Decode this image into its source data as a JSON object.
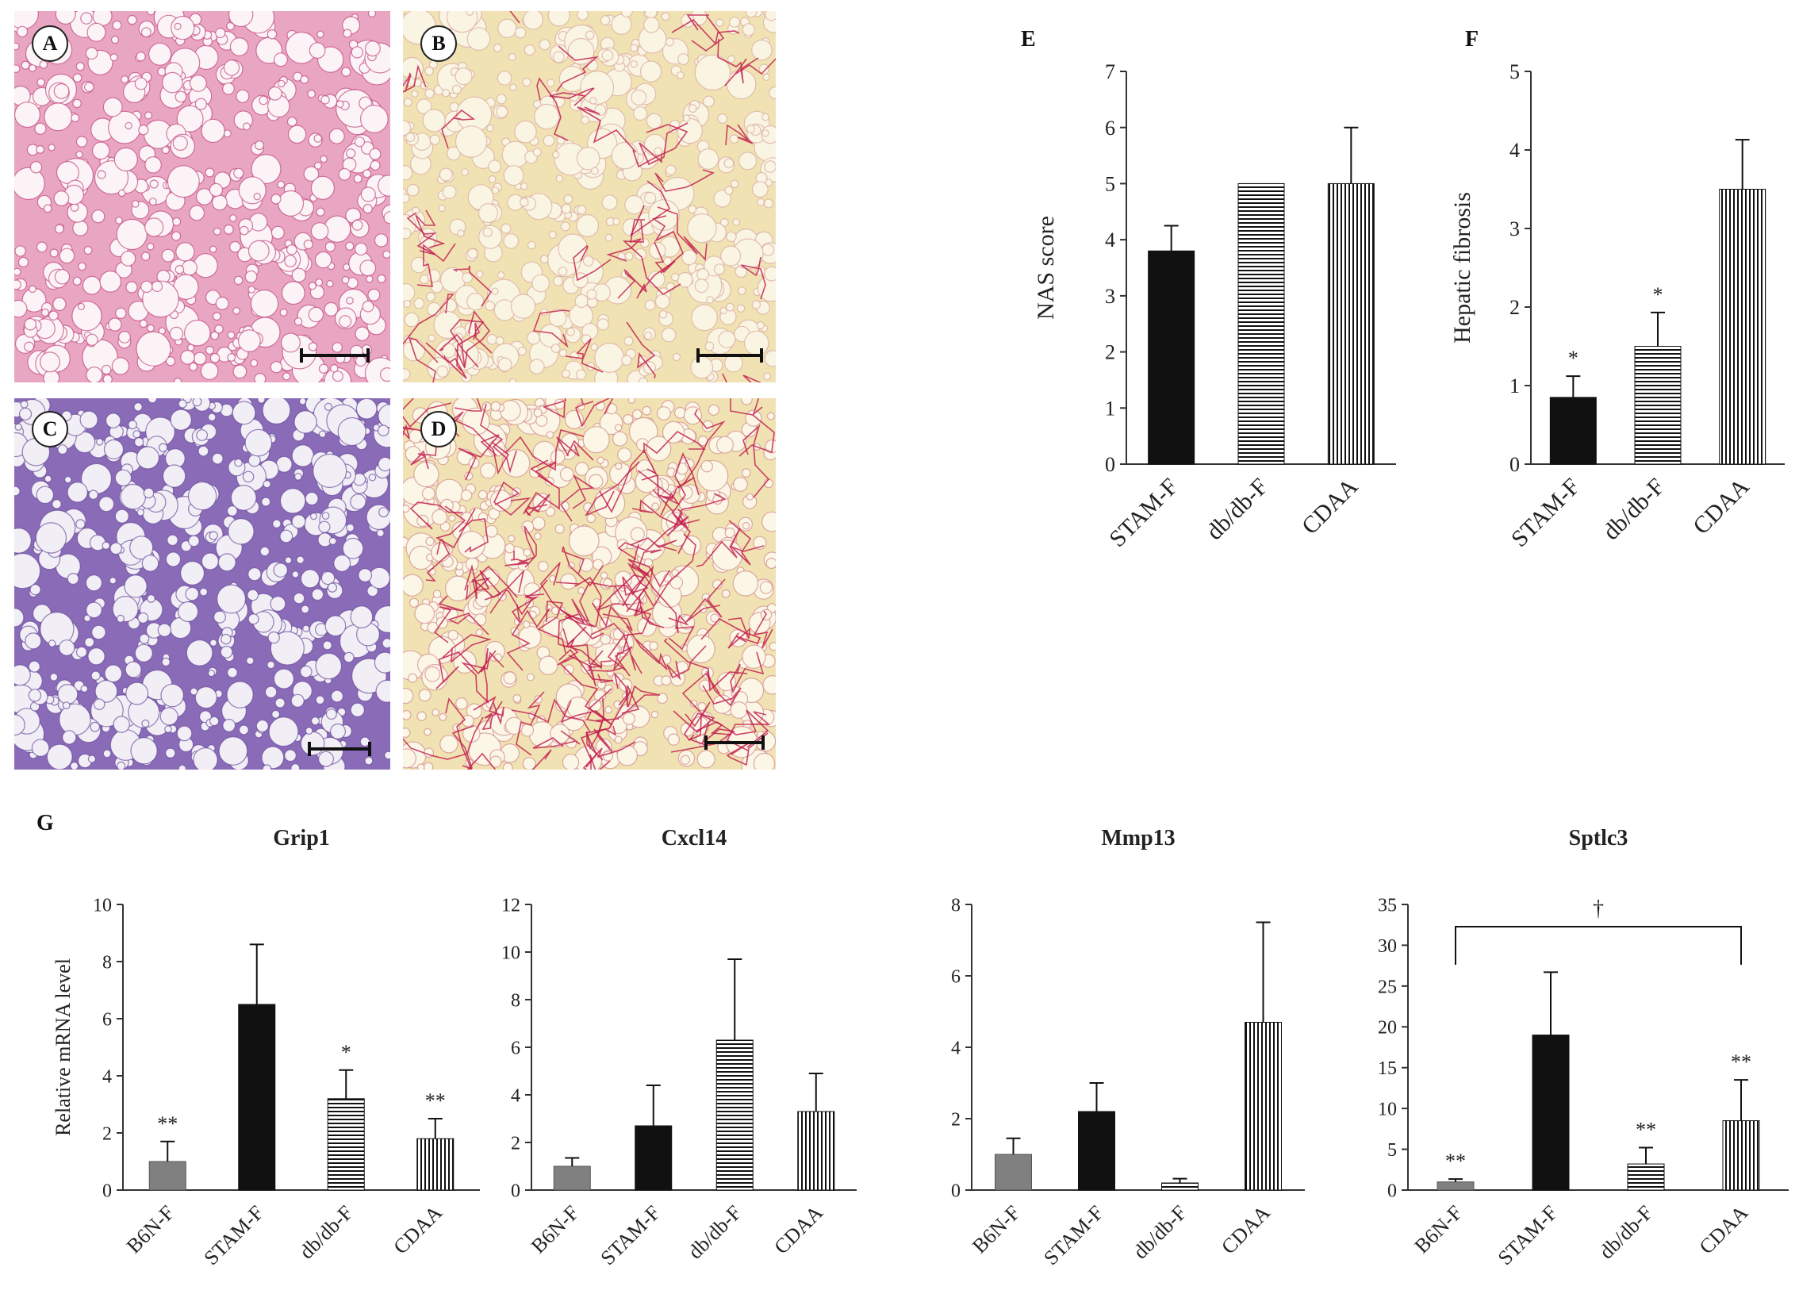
{
  "panels": {
    "A": "A",
    "B": "B",
    "C": "C",
    "D": "D",
    "E": "E",
    "F": "F",
    "G": "G"
  },
  "colors": {
    "he_pink": "#e9a6c3",
    "he_purple": "#8a6bb8",
    "sirius_cream": "#f1e2b4",
    "collagen_red": "#c0174a",
    "bar_black": "#111111",
    "bar_gray": "#808080"
  },
  "chart_data": [
    {
      "id": "E",
      "type": "bar",
      "title": "",
      "ylabel": "NAS score",
      "xlabel": "",
      "ylim": [
        0,
        7
      ],
      "yticks": [
        0,
        1,
        2,
        3,
        4,
        5,
        6,
        7
      ],
      "categories": [
        "STAM-F",
        "db/db-F",
        "CDAA"
      ],
      "values": [
        3.8,
        5.0,
        5.0
      ],
      "errors": [
        0.45,
        0,
        1.0
      ],
      "patterns": [
        "solid",
        "hlines",
        "vlines"
      ],
      "annotations": [
        "",
        "",
        ""
      ]
    },
    {
      "id": "F",
      "type": "bar",
      "title": "",
      "ylabel": "Hepatic fibrosis",
      "xlabel": "",
      "ylim": [
        0,
        5
      ],
      "yticks": [
        0,
        1,
        2,
        3,
        4,
        5
      ],
      "categories": [
        "STAM-F",
        "db/db-F",
        "CDAA"
      ],
      "values": [
        0.85,
        1.5,
        3.5
      ],
      "errors": [
        0.27,
        0.43,
        0.63
      ],
      "patterns": [
        "solid",
        "hlines",
        "vlines"
      ],
      "annotations": [
        "*",
        "*",
        ""
      ]
    },
    {
      "id": "Grip1",
      "type": "bar",
      "title": "Grip1",
      "ylabel": "Relative mRNA level",
      "xlabel": "",
      "ylim": [
        0,
        10
      ],
      "yticks": [
        0,
        2,
        4,
        6,
        8,
        10
      ],
      "categories": [
        "B6N-F",
        "STAM-F",
        "db/db-F",
        "CDAA"
      ],
      "values": [
        1.0,
        6.5,
        3.2,
        1.8
      ],
      "errors": [
        0.7,
        2.1,
        1.0,
        0.7
      ],
      "patterns": [
        "gray",
        "solid",
        "hlines",
        "vlines"
      ],
      "annotations": [
        "**",
        "",
        "*",
        "**"
      ]
    },
    {
      "id": "Cxcl14",
      "type": "bar",
      "title": "Cxcl14",
      "ylabel": "",
      "xlabel": "",
      "ylim": [
        0,
        12
      ],
      "yticks": [
        0,
        2,
        4,
        6,
        8,
        10,
        12
      ],
      "categories": [
        "B6N-F",
        "STAM-F",
        "db/db-F",
        "CDAA"
      ],
      "values": [
        1.0,
        2.7,
        6.3,
        3.3
      ],
      "errors": [
        0.35,
        1.7,
        3.4,
        1.6
      ],
      "patterns": [
        "gray",
        "solid",
        "hlines",
        "vlines"
      ],
      "annotations": [
        "",
        "",
        "",
        ""
      ]
    },
    {
      "id": "Mmp13",
      "type": "bar",
      "title": "Mmp13",
      "ylabel": "",
      "xlabel": "",
      "ylim": [
        0,
        8
      ],
      "yticks": [
        0,
        2,
        4,
        6,
        8
      ],
      "categories": [
        "B6N-F",
        "STAM-F",
        "db/db-F",
        "CDAA"
      ],
      "values": [
        1.0,
        2.2,
        0.2,
        4.7
      ],
      "errors": [
        0.45,
        0.8,
        0.12,
        2.8
      ],
      "patterns": [
        "gray",
        "solid",
        "hlines",
        "vlines"
      ],
      "annotations": [
        "",
        "",
        "",
        ""
      ]
    },
    {
      "id": "Sptlc3",
      "type": "bar",
      "title": "Sptlc3",
      "ylabel": "",
      "xlabel": "",
      "ylim": [
        0,
        35
      ],
      "yticks": [
        0,
        5,
        10,
        15,
        20,
        25,
        30,
        35
      ],
      "categories": [
        "B6N-F",
        "STAM-F",
        "db/db-F",
        "CDAA"
      ],
      "values": [
        1.0,
        19.0,
        3.2,
        8.5
      ],
      "errors": [
        0.35,
        7.7,
        2.0,
        5.0
      ],
      "patterns": [
        "gray",
        "solid",
        "hlines",
        "vlines"
      ],
      "annotations": [
        "**",
        "",
        "**",
        "**"
      ],
      "bracket": {
        "from": 0,
        "to": 3,
        "label": "†"
      }
    }
  ]
}
